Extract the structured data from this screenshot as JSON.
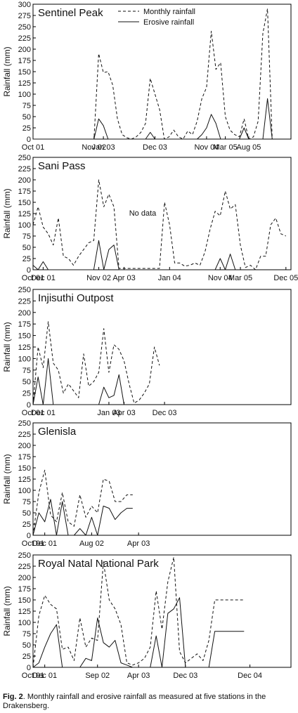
{
  "figure": {
    "ylabel": "Rainfall (mm)",
    "legend": {
      "monthly": "Monthly rainfall",
      "erosive": "Erosive rainfall"
    },
    "no_data_label": "No data"
  },
  "caption": {
    "label": "Fig. 2",
    "text": ". Monthly rainfall and erosive rainfall as measured at five stations in the Drakensberg."
  },
  "chart_data": [
    {
      "type": "line",
      "title": "Sentinel Peak",
      "ylabel": "Rainfall (mm)",
      "ylim": [
        0,
        300
      ],
      "yticks": [
        0,
        25,
        50,
        75,
        100,
        125,
        150,
        175,
        200,
        225,
        250,
        275,
        300
      ],
      "xlim": [
        0,
        55
      ],
      "xticks": [
        {
          "x": 0,
          "label": "Oct 01"
        },
        {
          "x": 13,
          "label": "Nov 02"
        },
        {
          "x": 15,
          "label": "Jan 03"
        },
        {
          "x": 26,
          "label": "Dec 03"
        },
        {
          "x": 37,
          "label": "Nov 04"
        },
        {
          "x": 41,
          "label": "Mar 05"
        },
        {
          "x": 46,
          "label": "Aug 05"
        }
      ],
      "legend": "top-center",
      "series": [
        {
          "name": "Monthly rainfall",
          "style": "dashed",
          "x": [
            0,
            13,
            14,
            15,
            16,
            17,
            18,
            19,
            20,
            21,
            22,
            23,
            24,
            25,
            26,
            27,
            28,
            29,
            30,
            31,
            32,
            33,
            34,
            35,
            36,
            37,
            38,
            39,
            40,
            41,
            42,
            43,
            44,
            45,
            46,
            47,
            48,
            49,
            50,
            51
          ],
          "y": [
            0,
            0,
            190,
            148,
            150,
            120,
            45,
            10,
            3,
            0,
            5,
            15,
            35,
            135,
            100,
            65,
            0,
            5,
            20,
            5,
            0,
            18,
            10,
            40,
            90,
            115,
            240,
            155,
            170,
            50,
            20,
            10,
            5,
            45,
            0,
            5,
            40,
            235,
            290,
            0
          ]
        },
        {
          "name": "Erosive rainfall",
          "style": "solid",
          "x": [
            0,
            13,
            14,
            15,
            16,
            17,
            18,
            19,
            20,
            21,
            22,
            23,
            24,
            25,
            26,
            27,
            28,
            29,
            30,
            31,
            32,
            33,
            34,
            35,
            36,
            37,
            38,
            39,
            40,
            41,
            42,
            43,
            44,
            45,
            46,
            47,
            48,
            49,
            50,
            51
          ],
          "y": [
            0,
            0,
            45,
            30,
            0,
            0,
            0,
            0,
            0,
            0,
            0,
            0,
            0,
            15,
            0,
            0,
            0,
            0,
            0,
            0,
            0,
            0,
            0,
            0,
            10,
            25,
            55,
            35,
            0,
            0,
            0,
            0,
            0,
            25,
            0,
            0,
            0,
            0,
            90,
            0
          ]
        }
      ]
    },
    {
      "type": "line",
      "title": "Sani Pass",
      "ylabel": "Rainfall (mm)",
      "ylim": [
        0,
        250
      ],
      "yticks": [
        0,
        25,
        50,
        75,
        100,
        125,
        150,
        175,
        200,
        225,
        250
      ],
      "xlim": [
        0,
        51
      ],
      "xticks": [
        {
          "x": 0,
          "label": "Oct 01"
        },
        {
          "x": 2,
          "label": "Dec 01"
        },
        {
          "x": 13,
          "label": "Nov 02"
        },
        {
          "x": 18,
          "label": "Apr 03"
        },
        {
          "x": 27,
          "label": "Jan 04"
        },
        {
          "x": 37,
          "label": "Nov 04"
        },
        {
          "x": 41,
          "label": "Mar 05"
        },
        {
          "x": 50,
          "label": "Dec 05"
        }
      ],
      "annotations": [
        {
          "x": 19,
          "y": 120,
          "text": "No data"
        }
      ],
      "legend": "none",
      "series": [
        {
          "name": "Monthly rainfall",
          "style": "dashed",
          "x": [
            0,
            1,
            2,
            3,
            4,
            5,
            6,
            7,
            8,
            9,
            10,
            11,
            12,
            13,
            14,
            15,
            16,
            17,
            18,
            25,
            26,
            27,
            28,
            29,
            30,
            31,
            32,
            33,
            34,
            35,
            36,
            37,
            38,
            39,
            40,
            41,
            42,
            43,
            44,
            45,
            46,
            47,
            48,
            49,
            50
          ],
          "y": [
            100,
            140,
            95,
            80,
            55,
            115,
            30,
            25,
            10,
            30,
            45,
            60,
            65,
            200,
            140,
            168,
            140,
            3,
            3,
            3,
            150,
            100,
            15,
            15,
            8,
            10,
            15,
            10,
            40,
            90,
            130,
            120,
            175,
            135,
            145,
            55,
            5,
            10,
            0,
            30,
            30,
            100,
            115,
            80,
            75
          ]
        },
        {
          "name": "Erosive rainfall",
          "style": "solid",
          "x": [
            0,
            1,
            2,
            3,
            4,
            5,
            6,
            7,
            8,
            9,
            10,
            11,
            12,
            13,
            14,
            15,
            16,
            17,
            18,
            25,
            26,
            27,
            28,
            29,
            30,
            31,
            32,
            33,
            34,
            35,
            36,
            37,
            38,
            39,
            40
          ],
          "y": [
            10,
            0,
            18,
            0,
            0,
            0,
            0,
            0,
            0,
            0,
            0,
            0,
            0,
            65,
            0,
            45,
            55,
            0,
            0,
            0,
            0,
            0,
            0,
            0,
            0,
            0,
            0,
            0,
            0,
            0,
            0,
            25,
            0,
            35,
            0
          ]
        }
      ]
    },
    {
      "type": "line",
      "title": "Injisuthi Outpost",
      "ylabel": "Rainfall (mm)",
      "ylim": [
        0,
        250
      ],
      "yticks": [
        0,
        25,
        50,
        75,
        100,
        125,
        150,
        175,
        200,
        225,
        250
      ],
      "xlim": [
        0,
        51
      ],
      "xticks": [
        {
          "x": 0,
          "label": "Oct 01"
        },
        {
          "x": 2,
          "label": "Dec 01"
        },
        {
          "x": 15,
          "label": "Jan 03"
        },
        {
          "x": 18,
          "label": "Apr 03"
        },
        {
          "x": 26,
          "label": "Dec 03"
        }
      ],
      "legend": "none",
      "series": [
        {
          "name": "Monthly rainfall",
          "style": "dashed",
          "x": [
            0,
            1,
            2,
            3,
            4,
            5,
            6,
            7,
            8,
            9,
            10,
            11,
            12,
            13,
            14,
            15,
            16,
            17,
            18,
            19,
            20,
            21,
            22,
            23,
            24,
            25
          ],
          "y": [
            0,
            125,
            80,
            180,
            90,
            75,
            25,
            45,
            30,
            15,
            110,
            40,
            50,
            70,
            165,
            70,
            130,
            120,
            95,
            45,
            3,
            10,
            25,
            45,
            125,
            85
          ]
        },
        {
          "name": "Erosive rainfall",
          "style": "solid",
          "x": [
            0,
            1,
            2,
            3,
            4,
            5,
            6,
            7,
            8,
            9,
            10,
            11,
            12,
            13,
            14,
            15,
            16,
            17,
            18
          ],
          "y": [
            0,
            60,
            0,
            100,
            0,
            0,
            0,
            0,
            0,
            0,
            0,
            0,
            0,
            0,
            38,
            15,
            20,
            65,
            0
          ]
        }
      ]
    },
    {
      "type": "line",
      "title": "Glenisla",
      "ylabel": "Rainfall (mm)",
      "ylim": [
        0,
        250
      ],
      "yticks": [
        0,
        25,
        50,
        75,
        100,
        125,
        150,
        175,
        200,
        225,
        250
      ],
      "xlim": [
        0,
        44
      ],
      "xticks": [
        {
          "x": 0,
          "label": "Oct 01"
        },
        {
          "x": 2,
          "label": "Dec 01"
        },
        {
          "x": 10,
          "label": "Aug 02"
        },
        {
          "x": 18,
          "label": "Apr 03"
        }
      ],
      "legend": "none",
      "series": [
        {
          "name": "Monthly rainfall",
          "style": "dashed",
          "x": [
            0,
            1,
            2,
            3,
            4,
            5,
            6,
            7,
            8,
            9,
            10,
            11,
            12,
            13,
            14,
            15,
            16,
            17
          ],
          "y": [
            0,
            95,
            145,
            45,
            30,
            95,
            30,
            20,
            90,
            40,
            65,
            50,
            125,
            120,
            75,
            75,
            90,
            90
          ]
        },
        {
          "name": "Erosive rainfall",
          "style": "solid",
          "x": [
            0,
            1,
            2,
            3,
            4,
            5,
            6,
            7,
            8,
            9,
            10,
            11,
            12,
            13,
            14,
            15,
            16,
            17
          ],
          "y": [
            0,
            50,
            30,
            80,
            0,
            75,
            0,
            0,
            15,
            0,
            40,
            0,
            65,
            60,
            35,
            50,
            60,
            60
          ]
        }
      ]
    },
    {
      "type": "line",
      "title": "Royal Natal National Park",
      "ylabel": "Rainfall (mm)",
      "ylim": [
        0,
        250
      ],
      "yticks": [
        0,
        25,
        50,
        75,
        100,
        125,
        150,
        175,
        200,
        225,
        250
      ],
      "xlim": [
        0,
        44
      ],
      "xticks": [
        {
          "x": 0,
          "label": "Oct 01"
        },
        {
          "x": 2,
          "label": "Dec 01"
        },
        {
          "x": 11,
          "label": "Sep 02"
        },
        {
          "x": 18,
          "label": "Apr 03"
        },
        {
          "x": 26,
          "label": "Dec 03"
        },
        {
          "x": 37,
          "label": "Dec 04"
        }
      ],
      "legend": "none",
      "series": [
        {
          "name": "Monthly rainfall",
          "style": "dashed",
          "x": [
            0,
            1,
            2,
            3,
            4,
            5,
            6,
            7,
            8,
            9,
            10,
            11,
            12,
            13,
            14,
            15,
            16,
            17,
            18,
            19,
            20,
            21,
            22,
            23,
            24,
            25,
            26,
            27,
            28,
            29,
            30,
            31,
            32,
            33,
            34,
            35,
            36
          ],
          "y": [
            0,
            115,
            160,
            140,
            130,
            40,
            45,
            15,
            110,
            45,
            65,
            60,
            235,
            150,
            130,
            95,
            10,
            5,
            10,
            20,
            45,
            170,
            85,
            190,
            245,
            35,
            10,
            20,
            30,
            15,
            60,
            150,
            150,
            150,
            150,
            150,
            150
          ]
        },
        {
          "name": "Erosive rainfall",
          "style": "solid",
          "x": [
            0,
            1,
            2,
            3,
            4,
            5,
            6,
            7,
            8,
            9,
            10,
            11,
            12,
            13,
            14,
            15,
            16,
            17,
            18,
            19,
            20,
            21,
            22,
            23,
            24,
            25,
            26,
            27,
            28,
            29,
            30,
            31,
            32,
            33,
            34,
            35,
            36
          ],
          "y": [
            0,
            10,
            45,
            75,
            95,
            0,
            0,
            0,
            0,
            20,
            15,
            110,
            55,
            45,
            60,
            10,
            5,
            0,
            0,
            0,
            0,
            70,
            0,
            120,
            130,
            155,
            0,
            0,
            0,
            0,
            0,
            80,
            80,
            80,
            80,
            80,
            80
          ]
        }
      ]
    }
  ]
}
